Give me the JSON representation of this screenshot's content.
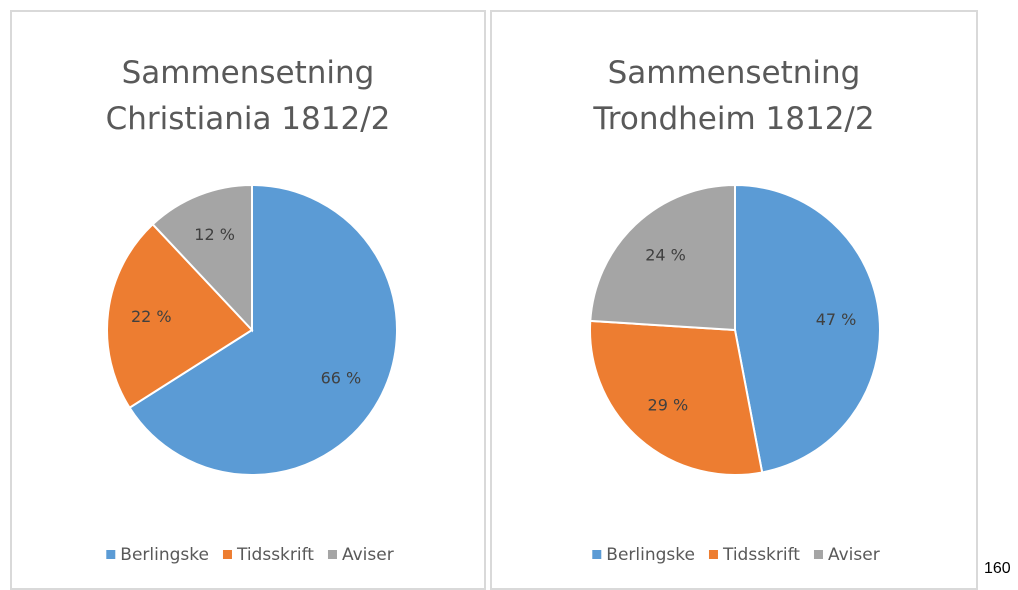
{
  "chart_data": [
    {
      "type": "pie",
      "title": [
        "Sammensetning",
        "Christiania 1812/2"
      ],
      "categories": [
        "Berlingske",
        "Tidsskrift",
        "Aviser"
      ],
      "values": [
        66,
        22,
        12
      ],
      "value_labels": [
        "66 %",
        "22 %",
        "12 %"
      ],
      "colors": [
        "#5b9bd5",
        "#ed7d31",
        "#a5a5a5"
      ],
      "legend": "bottom"
    },
    {
      "type": "pie",
      "title": [
        "Sammensetning",
        "Trondheim 1812/2"
      ],
      "categories": [
        "Berlingske",
        "Tidsskrift",
        "Aviser"
      ],
      "values": [
        47,
        29,
        24
      ],
      "value_labels": [
        "47 %",
        "29 %",
        "24 %"
      ],
      "colors": [
        "#5b9bd5",
        "#ed7d31",
        "#a5a5a5"
      ],
      "legend": "bottom"
    }
  ],
  "page_number": "160"
}
